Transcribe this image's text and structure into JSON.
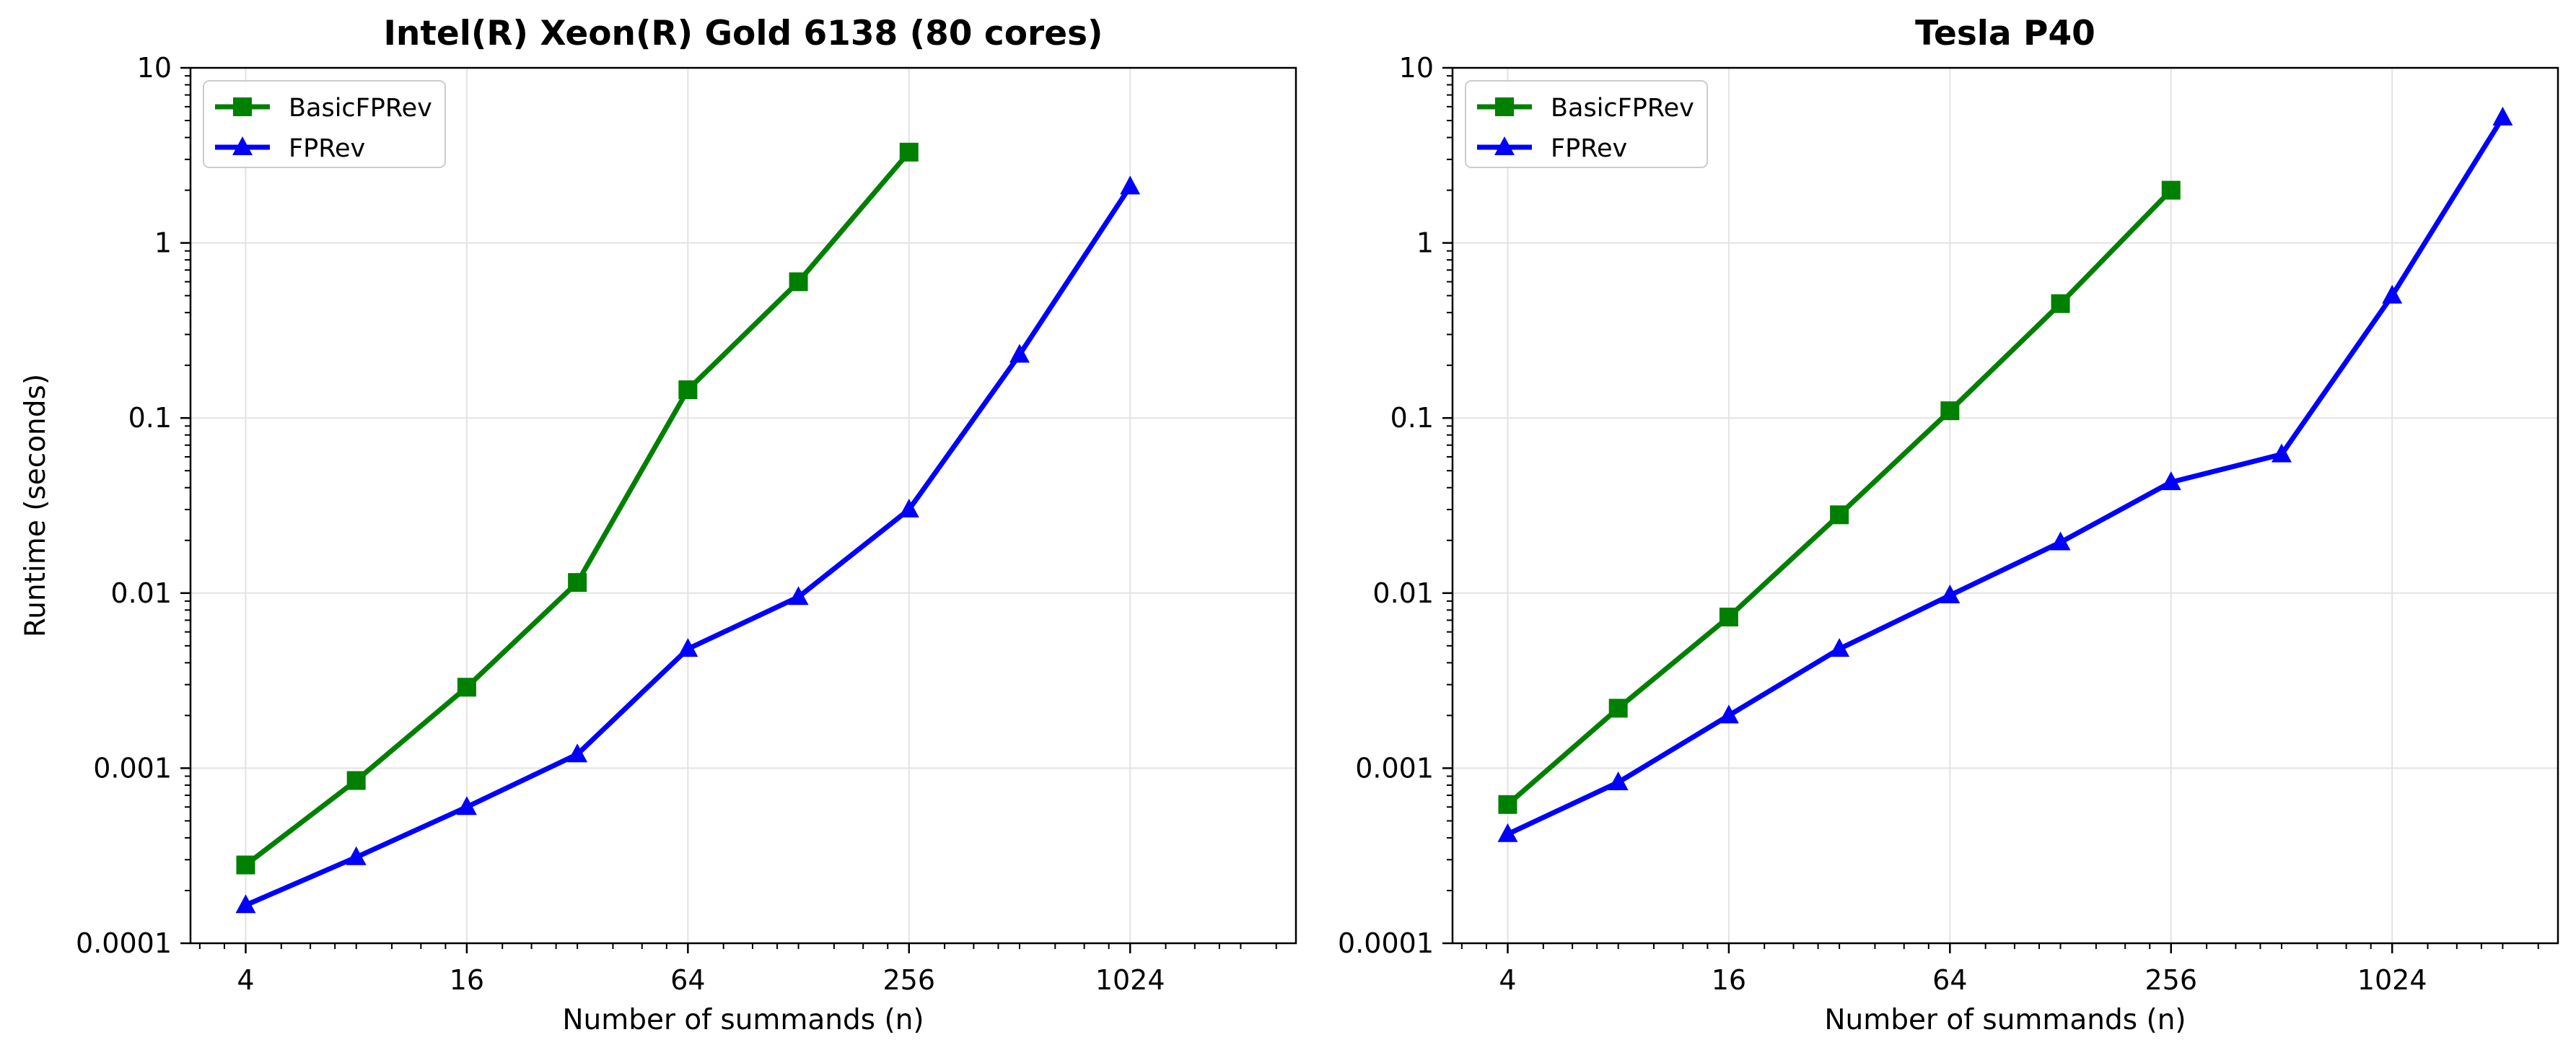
{
  "chart_data": [
    {
      "type": "line",
      "title": "Intel(R) Xeon(R) Gold 6138 (80 cores)",
      "xlabel": "Number of summands (n)",
      "ylabel": "Runtime (seconds)",
      "xscale": "log2",
      "yscale": "log10",
      "xlim": [
        2.83,
        2896
      ],
      "ylim": [
        0.0001,
        10
      ],
      "xticks": [
        4,
        16,
        64,
        256,
        1024
      ],
      "xtick_labels": [
        "4",
        "16",
        "64",
        "256",
        "1024"
      ],
      "yticks": [
        0.0001,
        0.001,
        0.01,
        0.1,
        1,
        10
      ],
      "ytick_labels": [
        "0.0001",
        "0.001",
        "0.01",
        "0.1",
        "1",
        "10"
      ],
      "grid": true,
      "legend": "upper-left",
      "series": [
        {
          "name": "BasicFPRev",
          "color": "#008000",
          "marker": "square",
          "x": [
            4,
            8,
            16,
            32,
            64,
            128,
            256
          ],
          "y": [
            0.00028,
            0.00085,
            0.0029,
            0.0115,
            0.145,
            0.6,
            3.3
          ]
        },
        {
          "name": "FPRev",
          "color": "#0000ff",
          "marker": "triangle",
          "x": [
            4,
            8,
            16,
            32,
            64,
            128,
            256,
            512,
            1024
          ],
          "y": [
            0.000165,
            0.00031,
            0.0006,
            0.0012,
            0.0048,
            0.0095,
            0.03,
            0.23,
            2.1
          ]
        }
      ]
    },
    {
      "type": "line",
      "title": "Tesla P40",
      "xlabel": "Number of summands (n)",
      "ylabel": "",
      "xscale": "log2",
      "yscale": "log10",
      "xlim": [
        2.83,
        2896
      ],
      "ylim": [
        0.0001,
        10
      ],
      "xticks": [
        4,
        16,
        64,
        256,
        1024
      ],
      "xtick_labels": [
        "4",
        "16",
        "64",
        "256",
        "1024"
      ],
      "yticks": [
        0.0001,
        0.001,
        0.01,
        0.1,
        1,
        10
      ],
      "ytick_labels": [
        "0.0001",
        "0.001",
        "0.01",
        "0.1",
        "1",
        "10"
      ],
      "grid": true,
      "legend": "upper-left",
      "series": [
        {
          "name": "BasicFPRev",
          "color": "#008000",
          "marker": "square",
          "x": [
            4,
            8,
            16,
            32,
            64,
            128,
            256
          ],
          "y": [
            0.00062,
            0.0022,
            0.0073,
            0.028,
            0.11,
            0.45,
            2.0
          ]
        },
        {
          "name": "FPRev",
          "color": "#0000ff",
          "marker": "triangle",
          "x": [
            4,
            8,
            16,
            32,
            64,
            128,
            256,
            512,
            1024,
            2048
          ],
          "y": [
            0.00042,
            0.00083,
            0.002,
            0.0048,
            0.0097,
            0.0195,
            0.043,
            0.062,
            0.5,
            5.2
          ]
        }
      ]
    }
  ]
}
